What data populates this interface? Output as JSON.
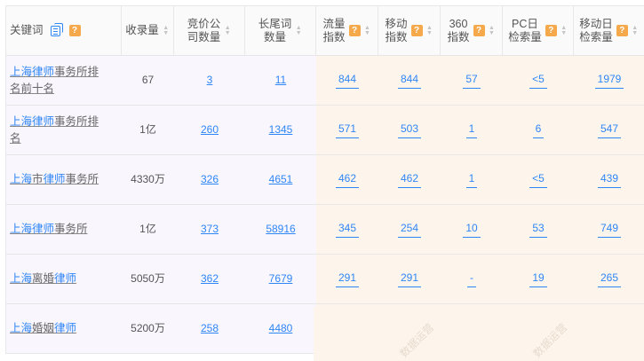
{
  "header": {
    "keyword": "关键词",
    "columns": [
      "收录量",
      "竞价公\n司数量",
      "长尾词\n数量",
      "流量\n指数",
      "移动\n指数",
      "360\n指数",
      "PC日\n检索量",
      "移动日\n检索量"
    ],
    "help_columns": [
      false,
      false,
      false,
      true,
      true,
      true,
      true,
      true
    ],
    "help_glyph": "?"
  },
  "rows": [
    {
      "keyword": [
        [
          "上海律师",
          true
        ],
        [
          "事务所排名前十名",
          false
        ]
      ],
      "values": [
        "67",
        "3",
        "11",
        "844",
        "844",
        "57",
        "<5",
        "1979"
      ]
    },
    {
      "keyword": [
        [
          "上海律师",
          true
        ],
        [
          "事务所排名",
          false
        ]
      ],
      "values": [
        "1亿",
        "260",
        "1345",
        "571",
        "503",
        "1",
        "6",
        "547"
      ]
    },
    {
      "keyword": [
        [
          "上海",
          true
        ],
        [
          "市",
          false
        ],
        [
          "律师",
          true
        ],
        [
          "事务所",
          false
        ]
      ],
      "values": [
        "4330万",
        "326",
        "4651",
        "462",
        "462",
        "1",
        "<5",
        "439"
      ]
    },
    {
      "keyword": [
        [
          "上海律师",
          true
        ],
        [
          "事务所",
          false
        ]
      ],
      "values": [
        "1亿",
        "373",
        "58916",
        "345",
        "254",
        "10",
        "53",
        "749"
      ]
    },
    {
      "keyword": [
        [
          "上海",
          true
        ],
        [
          "离婚",
          false
        ],
        [
          "律师",
          true
        ]
      ],
      "values": [
        "5050万",
        "362",
        "7679",
        "291",
        "291",
        "-",
        "19",
        "265"
      ]
    },
    {
      "keyword": [
        [
          "上海",
          true
        ],
        [
          "婚姻",
          false
        ],
        [
          "律师",
          true
        ]
      ],
      "values": [
        "5200万",
        "258",
        "4480"
      ]
    }
  ],
  "watermark": "数据运营",
  "colors": {
    "link": "#2f86f6",
    "help": "#f5a94a",
    "left_bg": "#f9f6fd",
    "right_bg": "#fdf5ec"
  }
}
